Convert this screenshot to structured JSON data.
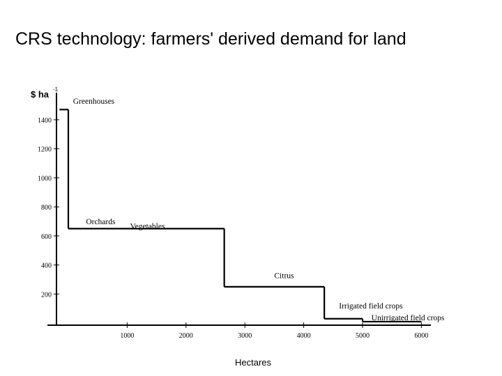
{
  "slide": {
    "title": "CRS technology: farmers' derived demand for land"
  },
  "chart_data": {
    "type": "line",
    "step": true,
    "title": "CRS technology: farmers' derived demand for land",
    "ylabel": "$ ha",
    "ylabel_superscript": "-1",
    "xlabel": "Hectares",
    "xlim": [
      -250,
      6200
    ],
    "ylim": [
      0,
      1700
    ],
    "x_ticks": [
      1000,
      2000,
      3000,
      4000,
      5000,
      6000
    ],
    "y_ticks": [
      200,
      400,
      600,
      800,
      1000,
      1200,
      1400
    ],
    "grid": false,
    "color": "#000000",
    "segments": [
      {
        "x_start": -150,
        "x_end": 0,
        "y": 1470
      },
      {
        "x_start": 0,
        "x_end": 2650,
        "y": 650
      },
      {
        "x_start": 2650,
        "x_end": 4350,
        "y": 250
      },
      {
        "x_start": 4350,
        "x_end": 5000,
        "y": 30
      },
      {
        "x_start": 5000,
        "x_end": 6000,
        "y": 10
      }
    ],
    "annotations": [
      {
        "text": "Greenhouses",
        "x": 80,
        "y": 1510
      },
      {
        "text": "Orchards",
        "x": 300,
        "y": 680
      },
      {
        "text": "Vegetables",
        "x": 1050,
        "y": 650
      },
      {
        "text": "Citrus",
        "x": 3500,
        "y": 310
      },
      {
        "text": "Irrigated field crops",
        "x": 4600,
        "y": 100
      },
      {
        "text": "Unirrigated field crops",
        "x": 5150,
        "y": 20
      }
    ]
  }
}
